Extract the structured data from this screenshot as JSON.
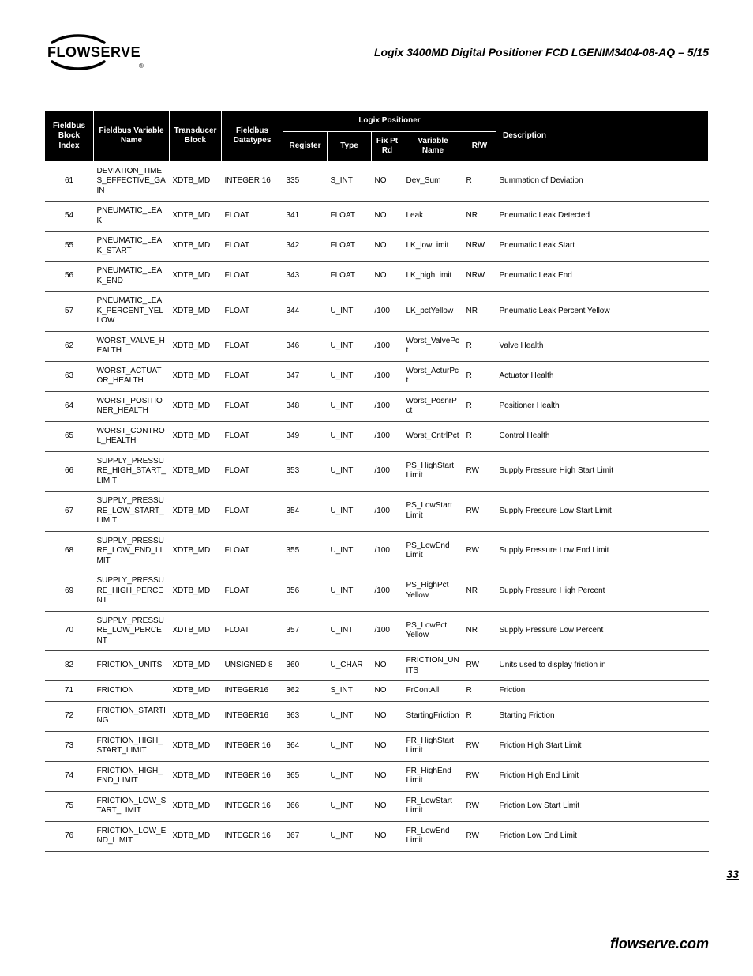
{
  "brand": "FLOWSERVE",
  "doc_title": "Logix 3400MD Digital Positioner FCD LGENIM3404-08-AQ – 5/15",
  "group_header": "Logix Positioner",
  "columns": {
    "idx": "Fieldbus Block Index",
    "var": "Fieldbus Variable Name",
    "blk": "Transducer Block",
    "dt": "Fieldbus Datatypes",
    "reg": "Register",
    "typ": "Type",
    "fix": "Fix Pt Rd",
    "vn": "Variable Name",
    "rw": "R/W",
    "desc": "Description"
  },
  "rows": [
    {
      "idx": "61",
      "var": "DEVIATION_TIMES_EFFECTIVE_GAIN",
      "blk": "XDTB_MD",
      "dt": "INTEGER 16",
      "reg": "335",
      "typ": "S_INT",
      "fix": "NO",
      "vn": "Dev_Sum",
      "rw": "R",
      "desc": "Summation of Deviation"
    },
    {
      "idx": "54",
      "var": "PNEUMATIC_LEAK",
      "blk": "XDTB_MD",
      "dt": "FLOAT",
      "reg": "341",
      "typ": "FLOAT",
      "fix": "NO",
      "vn": "Leak",
      "rw": "NR",
      "desc": "Pneumatic Leak Detected"
    },
    {
      "idx": "55",
      "var": "PNEUMATIC_LEAK_START",
      "blk": "XDTB_MD",
      "dt": "FLOAT",
      "reg": "342",
      "typ": "FLOAT",
      "fix": "NO",
      "vn": "LK_lowLimit",
      "rw": "NRW",
      "desc": "Pneumatic Leak Start"
    },
    {
      "idx": "56",
      "var": "PNEUMATIC_LEAK_END",
      "blk": "XDTB_MD",
      "dt": "FLOAT",
      "reg": "343",
      "typ": "FLOAT",
      "fix": "NO",
      "vn": "LK_highLimit",
      "rw": "NRW",
      "desc": "Pneumatic Leak End"
    },
    {
      "idx": "57",
      "var": "PNEUMATIC_LEAK_PERCENT_YELLOW",
      "blk": "XDTB_MD",
      "dt": "FLOAT",
      "reg": "344",
      "typ": "U_INT",
      "fix": "/100",
      "vn": "LK_pctYellow",
      "rw": "NR",
      "desc": "Pneumatic Leak Percent Yellow"
    },
    {
      "idx": "62",
      "var": "WORST_VALVE_HEALTH",
      "blk": "XDTB_MD",
      "dt": "FLOAT",
      "reg": "346",
      "typ": "U_INT",
      "fix": "/100",
      "vn": "Worst_ValvePct",
      "rw": "R",
      "desc": "Valve Health"
    },
    {
      "idx": "63",
      "var": "WORST_ACTUATOR_HEALTH",
      "blk": "XDTB_MD",
      "dt": "FLOAT",
      "reg": "347",
      "typ": "U_INT",
      "fix": "/100",
      "vn": "Worst_ActurPct",
      "rw": "R",
      "desc": "Actuator Health"
    },
    {
      "idx": "64",
      "var": "WORST_POSITIONER_HEALTH",
      "blk": "XDTB_MD",
      "dt": "FLOAT",
      "reg": "348",
      "typ": "U_INT",
      "fix": "/100",
      "vn": "Worst_PosnrPct",
      "rw": "R",
      "desc": "Positioner Health"
    },
    {
      "idx": "65",
      "var": "WORST_CONTROL_HEALTH",
      "blk": "XDTB_MD",
      "dt": "FLOAT",
      "reg": "349",
      "typ": "U_INT",
      "fix": "/100",
      "vn": "Worst_CntrlPct",
      "rw": "R",
      "desc": "Control Health"
    },
    {
      "idx": "66",
      "var": "SUPPLY_PRESSURE_HIGH_START_LIMIT",
      "blk": "XDTB_MD",
      "dt": "FLOAT",
      "reg": "353",
      "typ": "U_INT",
      "fix": "/100",
      "vn": "PS_HighStart Limit",
      "rw": "RW",
      "desc": "Supply Pressure High Start Limit"
    },
    {
      "idx": "67",
      "var": "SUPPLY_PRESSURE_LOW_START_LIMIT",
      "blk": "XDTB_MD",
      "dt": "FLOAT",
      "reg": "354",
      "typ": "U_INT",
      "fix": "/100",
      "vn": "PS_LowStart Limit",
      "rw": "RW",
      "desc": "Supply Pressure Low Start Limit"
    },
    {
      "idx": "68",
      "var": "SUPPLY_PRESSURE_LOW_END_LIMIT",
      "blk": "XDTB_MD",
      "dt": "FLOAT",
      "reg": "355",
      "typ": "U_INT",
      "fix": "/100",
      "vn": "PS_LowEnd Limit",
      "rw": "RW",
      "desc": "Supply Pressure Low End Limit"
    },
    {
      "idx": "69",
      "var": "SUPPLY_PRESSURE_HIGH_PERCENT",
      "blk": "XDTB_MD",
      "dt": "FLOAT",
      "reg": "356",
      "typ": "U_INT",
      "fix": "/100",
      "vn": "PS_HighPct Yellow",
      "rw": "NR",
      "desc": "Supply Pressure High Percent"
    },
    {
      "idx": "70",
      "var": "SUPPLY_PRESSURE_LOW_PERCENT",
      "blk": "XDTB_MD",
      "dt": "FLOAT",
      "reg": "357",
      "typ": "U_INT",
      "fix": "/100",
      "vn": "PS_LowPct Yellow",
      "rw": "NR",
      "desc": "Supply Pressure Low Percent"
    },
    {
      "idx": "82",
      "var": "FRICTION_UNITS",
      "blk": "XDTB_MD",
      "dt": "UNSIGNED 8",
      "reg": "360",
      "typ": "U_CHAR",
      "fix": "NO",
      "vn": "FRICTION_UNITS",
      "rw": "RW",
      "desc": "Units used to display friction in"
    },
    {
      "idx": "71",
      "var": "FRICTION",
      "blk": "XDTB_MD",
      "dt": "INTEGER16",
      "reg": "362",
      "typ": "S_INT",
      "fix": "NO",
      "vn": "FrContAll",
      "rw": "R",
      "desc": "Friction"
    },
    {
      "idx": "72",
      "var": "FRICTION_STARTING",
      "blk": "XDTB_MD",
      "dt": "INTEGER16",
      "reg": "363",
      "typ": "U_INT",
      "fix": "NO",
      "vn": "StartingFriction",
      "rw": "R",
      "desc": "Starting Friction"
    },
    {
      "idx": "73",
      "var": "FRICTION_HIGH_START_LIMIT",
      "blk": "XDTB_MD",
      "dt": "INTEGER 16",
      "reg": "364",
      "typ": "U_INT",
      "fix": "NO",
      "vn": "FR_HighStart Limit",
      "rw": "RW",
      "desc": "Friction High Start Limit"
    },
    {
      "idx": "74",
      "var": "FRICTION_HIGH_END_LIMIT",
      "blk": "XDTB_MD",
      "dt": "INTEGER 16",
      "reg": "365",
      "typ": "U_INT",
      "fix": "NO",
      "vn": "FR_HighEnd Limit",
      "rw": "RW",
      "desc": "Friction High End Limit"
    },
    {
      "idx": "75",
      "var": "FRICTION_LOW_START_LIMIT",
      "blk": "XDTB_MD",
      "dt": "INTEGER 16",
      "reg": "366",
      "typ": "U_INT",
      "fix": "NO",
      "vn": "FR_LowStart Limit",
      "rw": "RW",
      "desc": "Friction Low Start Limit"
    },
    {
      "idx": "76",
      "var": "FRICTION_LOW_END_LIMIT",
      "blk": "XDTB_MD",
      "dt": "INTEGER 16",
      "reg": "367",
      "typ": "U_INT",
      "fix": "NO",
      "vn": "FR_LowEnd Limit",
      "rw": "RW",
      "desc": "Friction Low End Limit"
    }
  ],
  "page_num": "33",
  "footer": "flowserve.com"
}
